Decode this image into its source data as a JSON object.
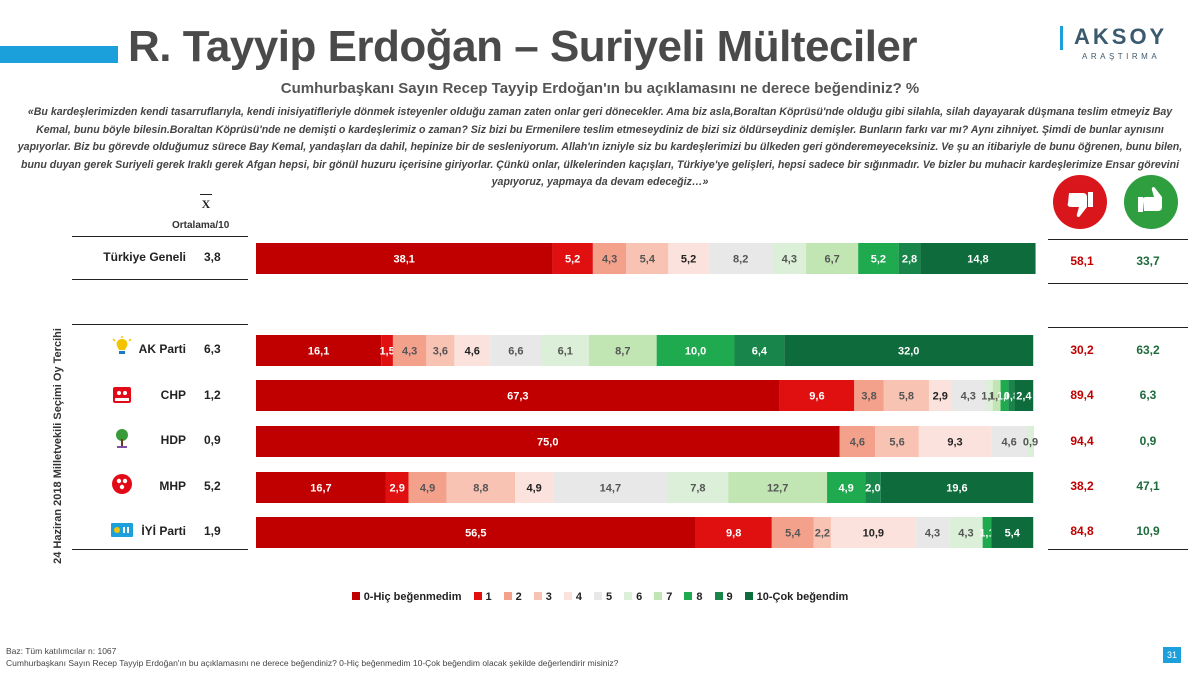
{
  "title": "R. Tayyip Erdoğan – Suriyeli Mülteciler",
  "logo": {
    "word": "AKSOY",
    "sub": "ARAŞTIRMA"
  },
  "question": "Cumhurbaşkanı Sayın Recep Tayyip Erdoğan'ın bu açıklamasını ne derece beğendiniz? %",
  "quote": "«Bu kardeşlerimizden kendi tasarruflarıyla, kendi inisiyatifleriyle dönmek isteyenler olduğu zaman zaten onlar geri dönecekler. Ama biz asla,Boraltan Köprüsü'nde olduğu gibi silahla, silah dayayarak düşmana teslim etmeyiz Bay Kemal, bunu böyle bilesin.Boraltan Köprüsü'nde ne demişti o kardeşlerimiz o zaman? Siz bizi bu Ermenilere teslim etmeseydiniz de bizi siz öldürseydiniz demişler. Bunların farkı var mı? Aynı zihniyet. Şimdi de bunlar aynısını yapıyorlar. Biz bu görevde olduğumuz sürece Bay Kemal, yandaşları da dahil, hepinize bir de sesleniyorum. Allah'ın izniyle siz bu kardeşlerimizi bu ülkeden geri gönderemeyeceksiniz. Ve şu an itibariyle de bunu öğrenen, bunu bilen, bunu duyan gerek Suriyeli gerek Iraklı gerek Afgan hepsi, bir gönül huzuru içerisine giriyorlar. Çünkü onlar, ülkelerinden kaçışları, Türkiye'ye gelişleri, hepsi sadece bir sığınmadır. Ve bizler bu muhacir kardeşlerimize Ensar görevini yapıyoruz, yapmaya da devam edeceğiz…»",
  "avg_symbol": "X",
  "avg_label": "Ortalama/10",
  "vertical_axis_label": "24 Haziran 2018 Milletvekili Seçimi Oy Tercihi",
  "rows": [
    {
      "label": "Türkiye Geneli",
      "avg": "3,8",
      "negative": "58,1",
      "positive": "33,7"
    },
    {
      "label": "AK Parti",
      "avg": "6,3",
      "negative": "30,2",
      "positive": "63,2"
    },
    {
      "label": "CHP",
      "avg": "1,2",
      "negative": "89,4",
      "positive": "6,3"
    },
    {
      "label": "HDP",
      "avg": "0,9",
      "negative": "94,4",
      "positive": "0,9"
    },
    {
      "label": "MHP",
      "avg": "5,2",
      "negative": "38,2",
      "positive": "47,1"
    },
    {
      "label": "İYİ Parti",
      "avg": "1,9",
      "negative": "84,8",
      "positive": "10,9"
    }
  ],
  "legend": [
    "0-Hiç beğenmedim",
    "1",
    "2",
    "3",
    "4",
    "5",
    "6",
    "7",
    "8",
    "9",
    "10-Çok beğendim"
  ],
  "footer": {
    "base": "Baz: Tüm katılımcılar n: 1067",
    "note": "Cumhurbaşkanı Sayın Recep Tayyip Erdoğan'ın bu açıklamasını ne derece beğendiniz? 0-Hiç beğenmedim 10-Çok beğendim olacak şekilde değerlendirir misiniz?"
  },
  "page_number": "31",
  "colors": [
    "#c00000",
    "#e01010",
    "#f4a18c",
    "#f8c3b3",
    "#fbe2dc",
    "#e8e8e8",
    "#dcefd8",
    "#c1e5b3",
    "#1faa50",
    "#18864b",
    "#0e6b3b"
  ],
  "chart_data": {
    "type": "bar",
    "orientation": "horizontal",
    "stacked": true,
    "title": "Cumhurbaşkanı Sayın Recep Tayyip Erdoğan'ın bu açıklamasını ne derece beğendiniz? %",
    "categories": [
      "Türkiye Geneli",
      "AK Parti",
      "CHP",
      "HDP",
      "MHP",
      "İYİ Parti"
    ],
    "series": [
      {
        "name": "0-Hiç beğenmedim",
        "values": [
          38.1,
          16.1,
          67.3,
          75.0,
          16.7,
          56.5
        ]
      },
      {
        "name": "1",
        "values": [
          5.2,
          1.5,
          9.6,
          0,
          2.9,
          9.8
        ]
      },
      {
        "name": "2",
        "values": [
          4.3,
          4.3,
          3.8,
          4.6,
          4.9,
          5.4
        ]
      },
      {
        "name": "3",
        "values": [
          5.4,
          3.6,
          5.8,
          5.6,
          8.8,
          2.2
        ]
      },
      {
        "name": "4",
        "values": [
          5.2,
          4.6,
          2.9,
          9.3,
          4.9,
          10.9
        ]
      },
      {
        "name": "5",
        "values": [
          8.2,
          6.6,
          4.3,
          4.6,
          14.7,
          4.3
        ]
      },
      {
        "name": "6",
        "values": [
          4.3,
          6.1,
          1.0,
          0.9,
          7.8,
          4.3
        ]
      },
      {
        "name": "7",
        "values": [
          6.7,
          8.7,
          1.0,
          0,
          12.7,
          0
        ]
      },
      {
        "name": "8",
        "values": [
          5.2,
          10.0,
          1.0,
          0,
          4.9,
          1.1
        ]
      },
      {
        "name": "9",
        "values": [
          2.8,
          6.4,
          0.8,
          0,
          2.0,
          0
        ]
      },
      {
        "name": "10-Çok beğendim",
        "values": [
          14.8,
          32.0,
          2.4,
          0,
          19.6,
          5.4
        ]
      }
    ],
    "data_labels": [
      [
        "38,1",
        "5,2",
        "4,3",
        "5,4",
        "5,2",
        "8,2",
        "4,3",
        "6,7",
        "5,2",
        "2,8",
        "14,8"
      ],
      [
        "16,1",
        "1,5",
        "4,3",
        "3,6",
        "4,6",
        "6,6",
        "6,1",
        "8,7",
        "10,0",
        "6,4",
        "32,0"
      ],
      [
        "67,3",
        "9,6",
        "3,8",
        "5,8",
        "2,9",
        "4,3",
        "1,0",
        "1,0",
        "1,0",
        "0,8",
        "2,4"
      ],
      [
        "75,0",
        "",
        "4,6",
        "5,6",
        "9,3",
        "4,6",
        "0,9",
        "",
        "",
        "",
        ""
      ],
      [
        "16,7",
        "2,9",
        "4,9",
        "8,8",
        "4,9",
        "14,7",
        "7,8",
        "12,7",
        "4,9",
        "2,0",
        "19,6"
      ],
      [
        "56,5",
        "9,8",
        "5,4",
        "2,2",
        "10,9",
        "4,3",
        "4,3",
        "",
        "1,1",
        "",
        "5,4"
      ]
    ],
    "xlim": [
      0,
      100
    ],
    "legend_position": "bottom"
  }
}
